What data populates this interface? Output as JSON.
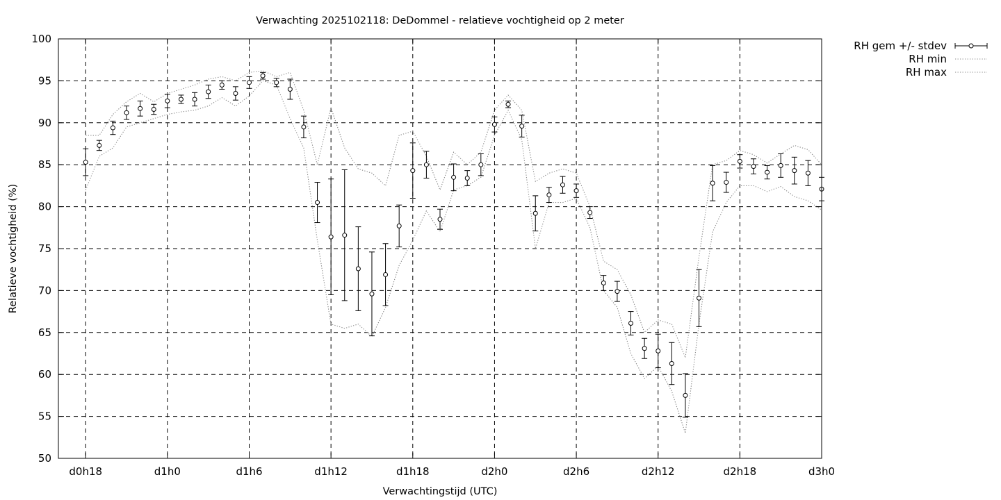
{
  "chart_data": {
    "type": "scatter",
    "title": "Verwachting 2025102118: DeDommel - relatieve vochtigheid op 2 meter",
    "xlabel": "Verwachtingstijd (UTC)",
    "ylabel": "Relatieve vochtigheid (%)",
    "ylim": [
      50,
      100
    ],
    "xlim": [
      16,
      72
    ],
    "grid": true,
    "legend_position": "outside-top-right",
    "xticks": [
      {
        "x": 18,
        "label": "d0h18"
      },
      {
        "x": 24,
        "label": "d1h0"
      },
      {
        "x": 30,
        "label": "d1h6"
      },
      {
        "x": 36,
        "label": "d1h12"
      },
      {
        "x": 42,
        "label": "d1h18"
      },
      {
        "x": 48,
        "label": "d2h0"
      },
      {
        "x": 54,
        "label": "d2h6"
      },
      {
        "x": 60,
        "label": "d2h12"
      },
      {
        "x": 66,
        "label": "d2h18"
      },
      {
        "x": 72,
        "label": "d3h0"
      }
    ],
    "yticks": [
      50,
      55,
      60,
      65,
      70,
      75,
      80,
      85,
      90,
      95,
      100
    ],
    "series": [
      {
        "name": "RH gem +/- stdev",
        "style": "errorbars",
        "x": [
          18,
          19,
          20,
          21,
          22,
          23,
          24,
          25,
          26,
          27,
          28,
          29,
          30,
          31,
          32,
          33,
          34,
          35,
          36,
          37,
          38,
          39,
          40,
          41,
          42,
          43,
          44,
          45,
          46,
          47,
          48,
          49,
          50,
          51,
          52,
          53,
          54,
          55,
          56,
          57,
          58,
          59,
          60,
          61,
          62,
          63,
          64,
          65,
          66,
          67,
          68,
          69,
          70,
          71,
          72
        ],
        "y": [
          85.3,
          87.3,
          89.4,
          91.2,
          91.7,
          91.6,
          92.6,
          92.8,
          92.8,
          93.7,
          94.5,
          93.5,
          94.8,
          95.6,
          94.8,
          94.0,
          89.5,
          80.5,
          76.4,
          76.6,
          72.6,
          69.6,
          71.9,
          77.7,
          84.3,
          85.0,
          78.5,
          83.5,
          83.4,
          85.0,
          89.8,
          92.2,
          89.6,
          79.2,
          81.4,
          82.6,
          81.9,
          79.3,
          70.9,
          69.9,
          66.1,
          63.1,
          62.8,
          61.3,
          57.5,
          69.1,
          82.8,
          82.9,
          85.4,
          84.8,
          84.1,
          84.9,
          84.3,
          84.0,
          82.1
        ],
        "stdev": [
          1.6,
          0.6,
          0.8,
          0.8,
          0.9,
          0.6,
          0.8,
          0.5,
          0.8,
          0.8,
          0.5,
          0.8,
          0.7,
          0.4,
          0.5,
          1.2,
          1.3,
          2.4,
          6.9,
          7.8,
          5.0,
          5.0,
          3.7,
          2.5,
          3.3,
          1.6,
          1.2,
          1.6,
          0.9,
          1.3,
          0.9,
          0.4,
          1.3,
          2.1,
          0.9,
          1.0,
          0.8,
          0.7,
          0.9,
          1.2,
          1.4,
          1.2,
          2.0,
          2.5,
          2.6,
          3.4,
          2.1,
          1.2,
          0.8,
          0.9,
          0.8,
          1.4,
          1.6,
          1.5,
          1.4
        ]
      },
      {
        "name": "RH min",
        "style": "dotted",
        "x": [
          18,
          19,
          20,
          21,
          22,
          23,
          24,
          25,
          26,
          27,
          28,
          29,
          30,
          31,
          32,
          33,
          34,
          35,
          36,
          37,
          38,
          39,
          40,
          41,
          42,
          43,
          44,
          45,
          46,
          47,
          48,
          49,
          50,
          51,
          52,
          53,
          54,
          55,
          56,
          57,
          58,
          59,
          60,
          61,
          62,
          63,
          64,
          65,
          66,
          67,
          68,
          69,
          70,
          71,
          72
        ],
        "y": [
          82.0,
          86.0,
          87.0,
          89.5,
          90.0,
          90.5,
          91.0,
          91.3,
          91.5,
          92.0,
          93.0,
          92.0,
          93.2,
          95.0,
          94.5,
          90.5,
          87.0,
          76.0,
          66.0,
          65.5,
          66.0,
          64.5,
          68.0,
          73.0,
          76.0,
          79.5,
          77.0,
          82.0,
          82.5,
          83.5,
          88.5,
          91.5,
          88.0,
          75.0,
          80.5,
          80.5,
          81.0,
          77.5,
          70.0,
          68.0,
          62.5,
          59.5,
          61.0,
          58.0,
          53.0,
          66.0,
          77.0,
          80.5,
          82.5,
          82.5,
          81.8,
          82.4,
          81.2,
          80.7,
          79.6
        ]
      },
      {
        "name": "RH max",
        "style": "dotted",
        "x": [
          18,
          19,
          20,
          21,
          22,
          23,
          24,
          25,
          26,
          27,
          28,
          29,
          30,
          31,
          32,
          33,
          34,
          35,
          36,
          37,
          38,
          39,
          40,
          41,
          42,
          43,
          44,
          45,
          46,
          47,
          48,
          49,
          50,
          51,
          52,
          53,
          54,
          55,
          56,
          57,
          58,
          59,
          60,
          61,
          62,
          63,
          64,
          65,
          66,
          67,
          68,
          69,
          70,
          71,
          72
        ],
        "y": [
          88.5,
          88.5,
          91.0,
          92.5,
          93.5,
          92.5,
          93.5,
          94.0,
          94.5,
          95.2,
          95.5,
          95.0,
          96.0,
          96.2,
          95.5,
          96.0,
          91.5,
          85.0,
          91.8,
          87.0,
          84.5,
          84.0,
          82.5,
          88.5,
          89.0,
          86.0,
          82.0,
          86.5,
          85.0,
          86.5,
          91.5,
          93.3,
          91.5,
          83.0,
          84.0,
          84.5,
          84.0,
          80.0,
          73.5,
          72.5,
          69.5,
          65.0,
          66.5,
          66.0,
          62.0,
          74.0,
          85.0,
          85.5,
          86.7,
          86.2,
          85.2,
          86.3,
          87.3,
          86.8,
          85.0
        ]
      }
    ]
  }
}
